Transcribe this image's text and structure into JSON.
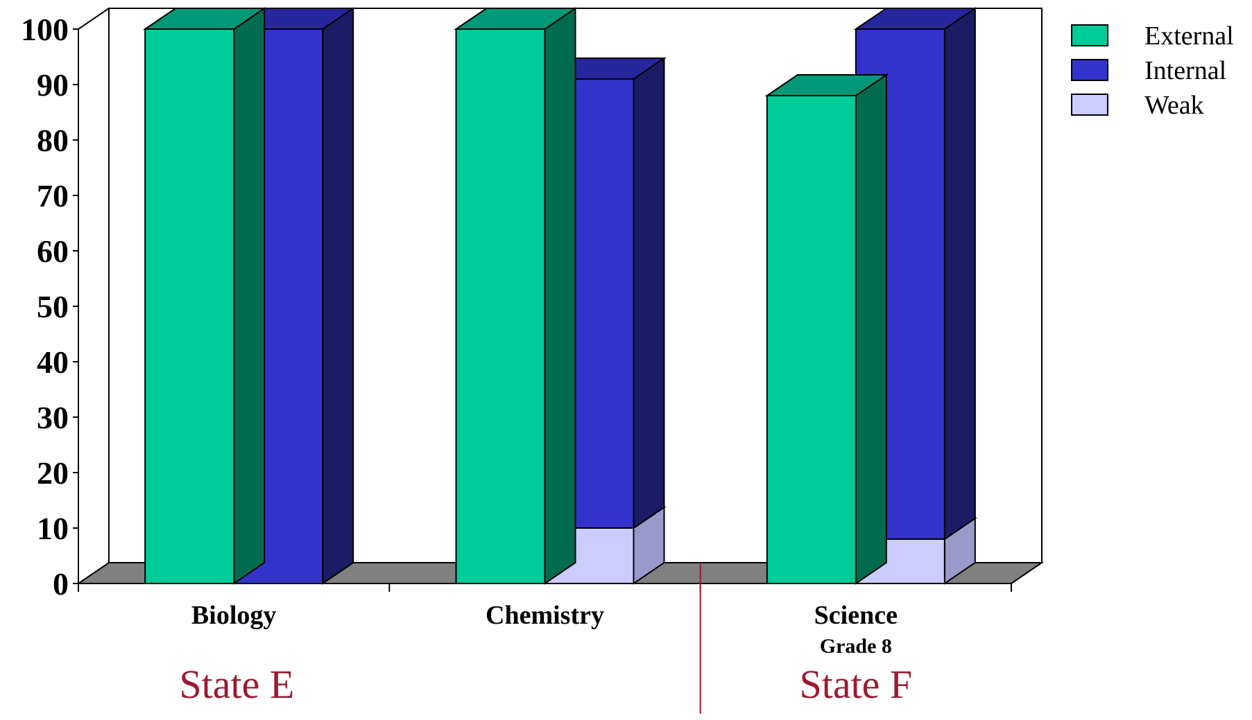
{
  "chart_data": {
    "type": "bar",
    "style": "3d-clustered-stacked",
    "categories": [
      {
        "label": "Biology",
        "sublabel": ""
      },
      {
        "label": "Chemistry",
        "sublabel": ""
      },
      {
        "label": "Science",
        "sublabel": "Grade 8"
      }
    ],
    "series": [
      {
        "name": "External",
        "stack": "external",
        "values": [
          100,
          100,
          88
        ]
      },
      {
        "name": "Weak",
        "stack": "internal",
        "values": [
          0,
          10,
          8
        ]
      },
      {
        "name": "Internal",
        "stack": "internal",
        "values": [
          100,
          81,
          92
        ]
      }
    ],
    "legend": [
      "External",
      "Internal",
      "Weak"
    ],
    "legend_position": "top-right",
    "ylim": [
      0,
      100
    ],
    "yticks": [
      "0",
      "10",
      "20",
      "30",
      "40",
      "50",
      "60",
      "70",
      "80",
      "90",
      "100"
    ],
    "grid": false,
    "groups": [
      {
        "label": "State E",
        "categories": [
          "Biology",
          "Chemistry"
        ]
      },
      {
        "label": "State F",
        "categories": [
          "Science"
        ]
      }
    ]
  },
  "colors": {
    "External": "#00cc99",
    "External_top": "#009977",
    "External_side": "#006b4f",
    "Internal": "#3333cc",
    "Internal_top": "#26269e",
    "Internal_side": "#1b1b66",
    "Weak": "#ccccff",
    "floor": "#808080",
    "group_label": "#9b1b30"
  }
}
